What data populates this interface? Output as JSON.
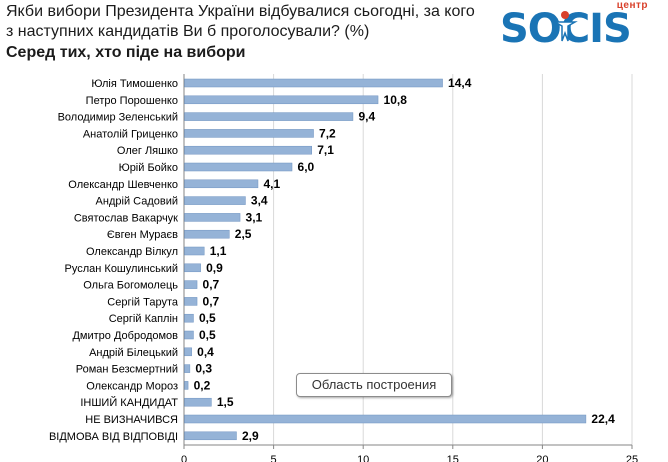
{
  "header": {
    "title": "Якби вибори Президента України відбувалися сьогодні, за кого з наступних кандидатів Ви б проголосували? (%)",
    "subtitle": "Серед тих, хто піде на вибори"
  },
  "logo": {
    "top_label": "центр",
    "word": "SOCIS",
    "accent": "#1a74b5",
    "secondary": "#d9412b"
  },
  "tooltip": {
    "label": "Область построения"
  },
  "colors": {
    "bar": "#95b3d7",
    "bar_stroke": "#6f93c0",
    "grid": "#d9d9d9",
    "axis": "#868686"
  },
  "chart_data": {
    "type": "bar",
    "orientation": "horizontal",
    "categories": [
      "Юлія Тимошенко",
      "Петро Порошенко",
      "Володимир Зеленський",
      "Анатолій Гриценко",
      "Олег Ляшко",
      "Юрій Бойко",
      "Олександр Шевченко",
      "Андрій Садовий",
      "Святослав Вакарчук",
      "Євген Мураєв",
      "Олександр Вілкул",
      "Руслан Кошулинський",
      "Ольга Богомолець",
      "Сергій Тарута",
      "Сергій Каплін",
      "Дмитро Добродомов",
      "Андрій Білецький",
      "Роман Безсмертний",
      "Олександр Мороз",
      "ІНШИЙ КАНДИДАТ",
      "НЕ ВИЗНАЧИВСЯ",
      "ВІДМОВА ВІД ВІДПОВІДІ"
    ],
    "values": [
      14.4,
      10.8,
      9.4,
      7.2,
      7.1,
      6.0,
      4.1,
      3.4,
      3.1,
      2.5,
      1.1,
      0.9,
      0.7,
      0.7,
      0.5,
      0.5,
      0.4,
      0.3,
      0.2,
      1.5,
      22.4,
      2.9
    ],
    "value_labels": [
      "14,4",
      "10,8",
      "9,4",
      "7,2",
      "7,1",
      "6,0",
      "4,1",
      "3,4",
      "3,1",
      "2,5",
      "1,1",
      "0,9",
      "0,7",
      "0,7",
      "0,5",
      "0,5",
      "0,4",
      "0,3",
      "0,2",
      "1,5",
      "22,4",
      "2,9"
    ],
    "xlim": [
      0,
      25
    ],
    "xticks": [
      0,
      5,
      10,
      15,
      20,
      25
    ],
    "xtick_labels": [
      "0",
      "5",
      "10",
      "15",
      "20",
      "25"
    ],
    "grid": "vertical",
    "legend": "none"
  }
}
